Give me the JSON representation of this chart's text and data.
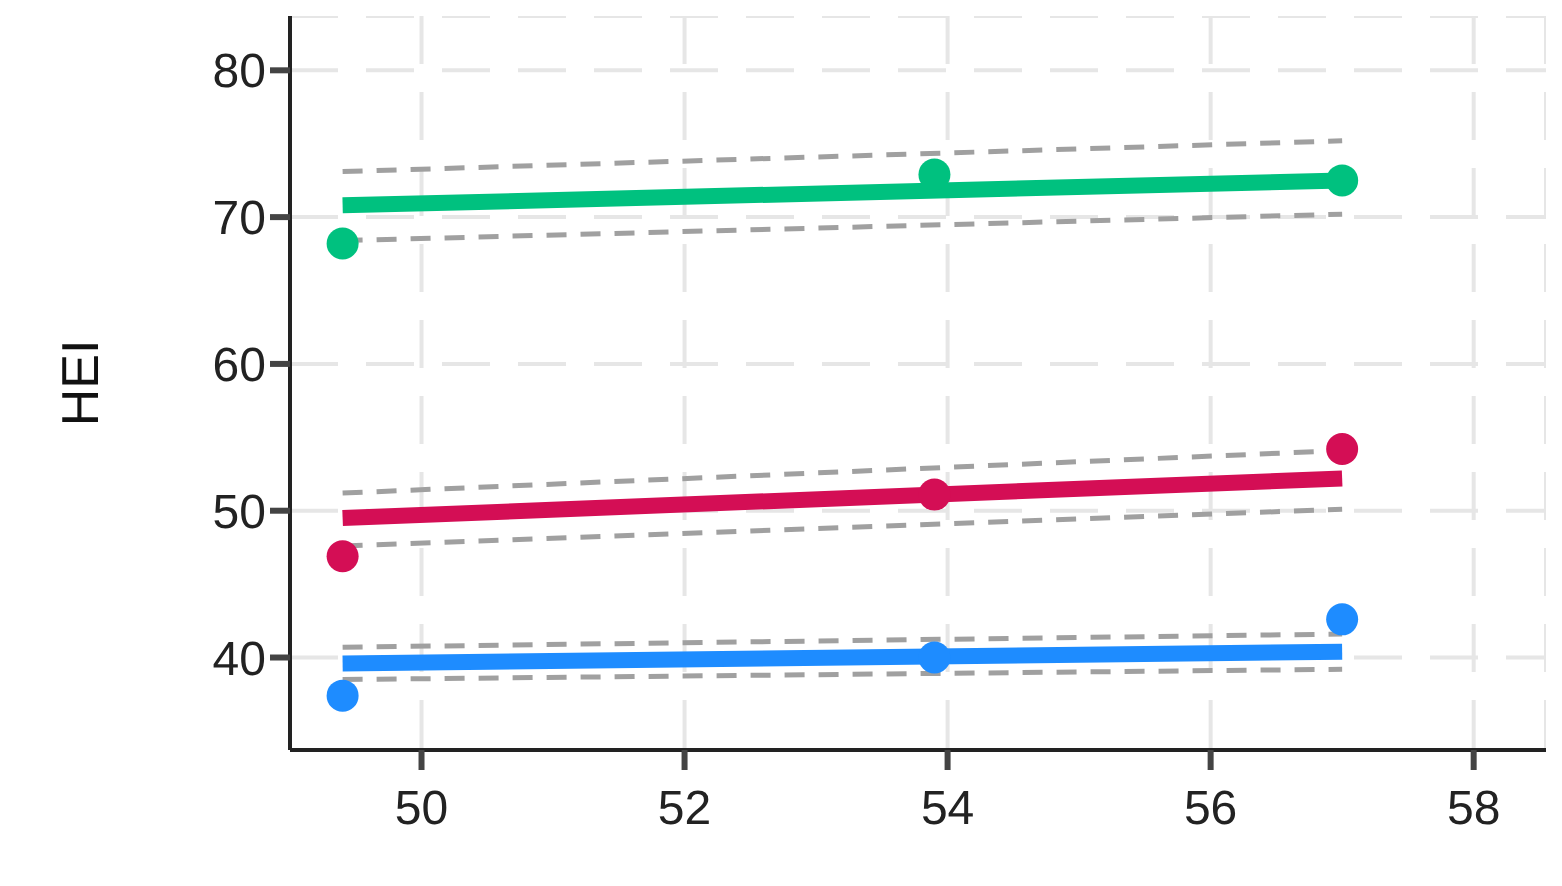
{
  "chart_data": {
    "type": "scatter",
    "ylabel": "HEI",
    "xlim": [
      49,
      58.55
    ],
    "ylim": [
      33.7,
      83.7
    ],
    "xticks": [
      50,
      52,
      54,
      56,
      58
    ],
    "yticks": [
      40,
      50,
      60,
      70,
      80
    ],
    "grid": true,
    "series": [
      {
        "type": "line",
        "color": "#a0a0a0",
        "line_style": "dashed",
        "marker": "none",
        "x": [
          49.4,
          57.0
        ],
        "values": [
          73.1,
          75.2
        ]
      },
      {
        "type": "line",
        "color": "#a0a0a0",
        "line_style": "dashed",
        "marker": "none",
        "x": [
          49.4,
          57.0
        ],
        "values": [
          68.4,
          70.2
        ]
      },
      {
        "type": "line",
        "color": "#00c17f",
        "line_style": "solid",
        "marker": "none",
        "x": [
          49.4,
          57.0
        ],
        "values": [
          70.8,
          72.5
        ]
      },
      {
        "color": "#00c17f",
        "marker": "circle",
        "x": [
          49.4,
          53.9,
          57.0
        ],
        "values": [
          68.2,
          72.9,
          72.5
        ]
      },
      {
        "type": "line",
        "color": "#a0a0a0",
        "line_style": "dashed",
        "marker": "none",
        "x": [
          49.4,
          57.0
        ],
        "values": [
          51.2,
          54.1
        ]
      },
      {
        "type": "line",
        "color": "#a0a0a0",
        "line_style": "dashed",
        "marker": "none",
        "x": [
          49.4,
          57.0
        ],
        "values": [
          47.6,
          50.1
        ]
      },
      {
        "type": "line",
        "color": "#d40e55",
        "line_style": "solid",
        "marker": "none",
        "x": [
          49.4,
          57.0
        ],
        "values": [
          49.5,
          52.2
        ]
      },
      {
        "color": "#d40e55",
        "marker": "circle",
        "x": [
          49.4,
          53.9,
          57.0
        ],
        "values": [
          46.9,
          51.1,
          54.2
        ]
      },
      {
        "type": "line",
        "color": "#a0a0a0",
        "line_style": "dashed",
        "marker": "none",
        "x": [
          49.4,
          57.0
        ],
        "values": [
          40.7,
          41.6
        ]
      },
      {
        "type": "line",
        "color": "#a0a0a0",
        "line_style": "dashed",
        "marker": "none",
        "x": [
          49.4,
          57.0
        ],
        "values": [
          38.5,
          39.2
        ]
      },
      {
        "type": "line",
        "color": "#1e8cff",
        "line_style": "solid",
        "marker": "none",
        "x": [
          49.4,
          57.0
        ],
        "values": [
          39.6,
          40.4
        ]
      },
      {
        "color": "#1e8cff",
        "marker": "circle",
        "x": [
          49.4,
          53.9,
          57.0
        ],
        "values": [
          37.4,
          40.0,
          42.6
        ]
      }
    ]
  }
}
